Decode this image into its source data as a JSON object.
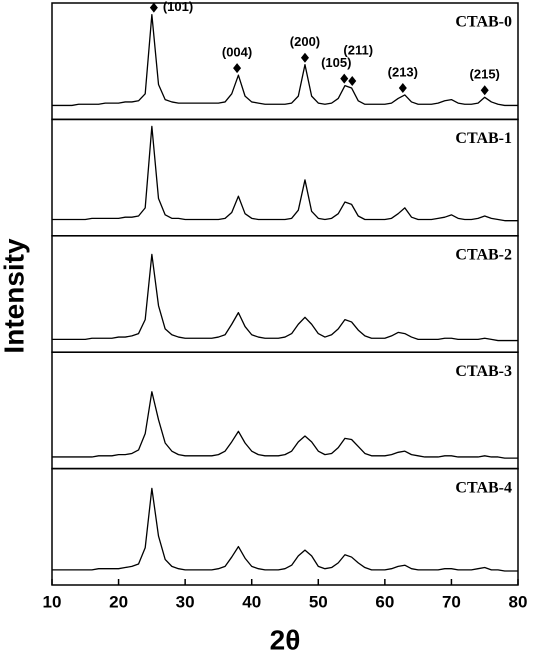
{
  "chart_data": {
    "type": "line",
    "xlabel": "2θ",
    "ylabel": "Intensity",
    "xlim": [
      10,
      80
    ],
    "xticks": [
      10,
      20,
      30,
      40,
      50,
      60,
      70,
      80
    ],
    "ylim": [
      0,
      100
    ],
    "x": [
      10,
      11,
      12,
      13,
      14,
      15,
      16,
      17,
      18,
      19,
      20,
      21,
      22,
      23,
      24,
      25,
      26,
      27,
      28,
      29,
      30,
      31,
      32,
      33,
      34,
      35,
      36,
      37,
      38,
      39,
      40,
      41,
      42,
      43,
      44,
      45,
      46,
      47,
      48,
      49,
      50,
      51,
      52,
      53,
      54,
      55,
      56,
      57,
      58,
      59,
      60,
      61,
      62,
      63,
      64,
      65,
      66,
      67,
      68,
      69,
      70,
      71,
      72,
      73,
      74,
      75,
      76,
      77,
      78,
      79,
      80
    ],
    "series": [
      {
        "name": "CTAB-0",
        "color": "#000000",
        "values": [
          12,
          12,
          12,
          12,
          13,
          13,
          13,
          13,
          14,
          14,
          14,
          15,
          15,
          16,
          22,
          90,
          30,
          17,
          15,
          14,
          14,
          14,
          14,
          14,
          14,
          14,
          15,
          22,
          38,
          20,
          15,
          14,
          13,
          13,
          13,
          13,
          14,
          20,
          47,
          20,
          14,
          13,
          14,
          18,
          29,
          27,
          16,
          13,
          13,
          13,
          13,
          14,
          18,
          21,
          15,
          13,
          13,
          13,
          14,
          16,
          17,
          14,
          13,
          13,
          14,
          19,
          15,
          13,
          12,
          12,
          12
        ]
      },
      {
        "name": "CTAB-1",
        "color": "#000000",
        "values": [
          14,
          14,
          14,
          14,
          14,
          14,
          15,
          15,
          15,
          15,
          15,
          16,
          16,
          17,
          24,
          94,
          32,
          18,
          15,
          15,
          14,
          14,
          14,
          14,
          14,
          14,
          15,
          20,
          34,
          19,
          15,
          14,
          14,
          14,
          14,
          14,
          15,
          22,
          48,
          21,
          15,
          14,
          15,
          19,
          29,
          27,
          17,
          14,
          14,
          14,
          14,
          15,
          19,
          24,
          16,
          14,
          14,
          14,
          15,
          16,
          18,
          15,
          14,
          14,
          15,
          17,
          15,
          14,
          13,
          13,
          13
        ]
      },
      {
        "name": "CTAB-2",
        "color": "#000000",
        "values": [
          11,
          11,
          11,
          11,
          11,
          11,
          12,
          12,
          12,
          12,
          13,
          13,
          14,
          16,
          28,
          84,
          40,
          20,
          15,
          13,
          12,
          12,
          12,
          12,
          12,
          13,
          15,
          24,
          34,
          22,
          15,
          13,
          12,
          12,
          12,
          13,
          16,
          24,
          30,
          24,
          16,
          13,
          15,
          20,
          28,
          26,
          19,
          14,
          12,
          12,
          12,
          14,
          17,
          16,
          13,
          11,
          11,
          11,
          11,
          12,
          12,
          11,
          11,
          11,
          11,
          12,
          11,
          10,
          10,
          10,
          10
        ]
      },
      {
        "name": "CTAB-3",
        "color": "#000000",
        "values": [
          10,
          10,
          10,
          10,
          10,
          10,
          10,
          11,
          11,
          11,
          12,
          12,
          13,
          16,
          30,
          66,
          42,
          22,
          15,
          12,
          11,
          11,
          11,
          11,
          11,
          12,
          15,
          23,
          32,
          22,
          15,
          12,
          11,
          11,
          11,
          12,
          15,
          23,
          28,
          23,
          15,
          12,
          13,
          18,
          26,
          25,
          19,
          13,
          11,
          11,
          11,
          12,
          14,
          15,
          12,
          11,
          10,
          10,
          10,
          11,
          11,
          10,
          10,
          10,
          10,
          11,
          10,
          10,
          9,
          9,
          9
        ]
      },
      {
        "name": "CTAB-4",
        "color": "#000000",
        "values": [
          13,
          13,
          13,
          13,
          13,
          13,
          13,
          14,
          14,
          14,
          14,
          15,
          16,
          18,
          32,
          83,
          42,
          22,
          16,
          14,
          13,
          13,
          13,
          13,
          13,
          14,
          16,
          24,
          33,
          23,
          16,
          14,
          13,
          13,
          13,
          14,
          17,
          25,
          30,
          25,
          16,
          14,
          15,
          19,
          26,
          24,
          19,
          15,
          13,
          13,
          13,
          14,
          16,
          17,
          14,
          13,
          13,
          13,
          13,
          14,
          14,
          13,
          13,
          13,
          14,
          15,
          13,
          13,
          12,
          12,
          12
        ]
      }
    ],
    "annotations": [
      {
        "text": "(101)",
        "x": 25.3
      },
      {
        "text": "(004)",
        "x": 37.8
      },
      {
        "text": "(200)",
        "x": 48.0
      },
      {
        "text": "(105)",
        "x": 53.9
      },
      {
        "text": "(211)",
        "x": 55.1
      },
      {
        "text": "(213)",
        "x": 62.7
      },
      {
        "text": "(215)",
        "x": 75.0
      }
    ]
  }
}
